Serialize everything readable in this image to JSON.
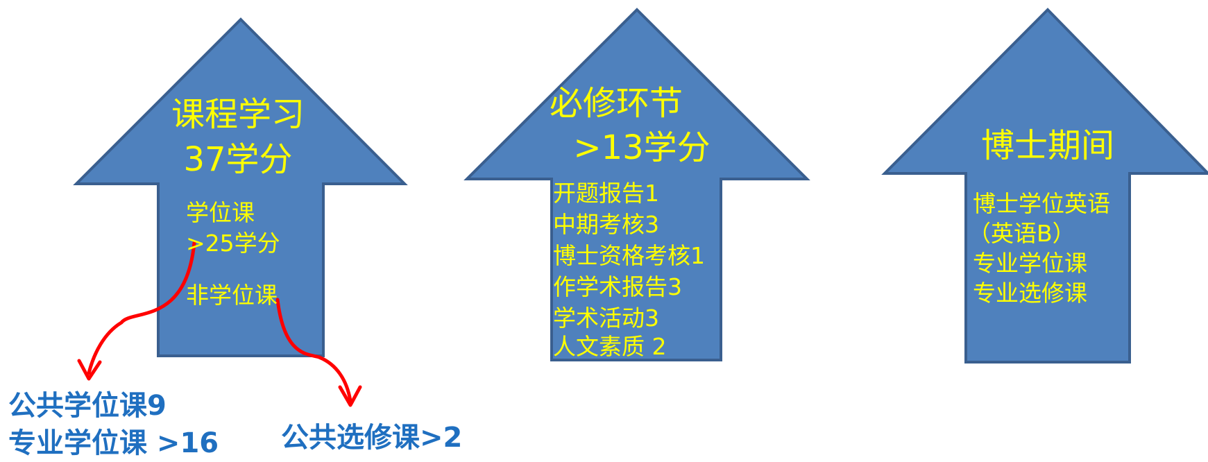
{
  "arrow1": {
    "title_line1": "课程学习",
    "title_line2": "37学分",
    "degree_label": "学位课",
    "degree_credits": ">25学分",
    "non_degree_label": "非学位课"
  },
  "arrow2": {
    "title_line1": "必修环节",
    "title_line2": ">13学分",
    "items": [
      "开题报告1",
      "中期考核3",
      "博士资格考核1",
      "作学术报告3",
      "学术活动3",
      "人文素质 2"
    ]
  },
  "arrow3": {
    "title": "博士期间",
    "items": [
      "博士学位英语",
      "（英语B）",
      "专业学位课",
      "专业选修课"
    ]
  },
  "outputs": {
    "degree_line1": "公共学位课9",
    "degree_line2": "专业学位课 >16",
    "non_degree": "公共选修课>2"
  },
  "colors": {
    "arrow_fill": "#4f81bd",
    "arrow_text": "#ffff00",
    "connector": "#ff0000",
    "output_text": "#1f6fc0"
  }
}
